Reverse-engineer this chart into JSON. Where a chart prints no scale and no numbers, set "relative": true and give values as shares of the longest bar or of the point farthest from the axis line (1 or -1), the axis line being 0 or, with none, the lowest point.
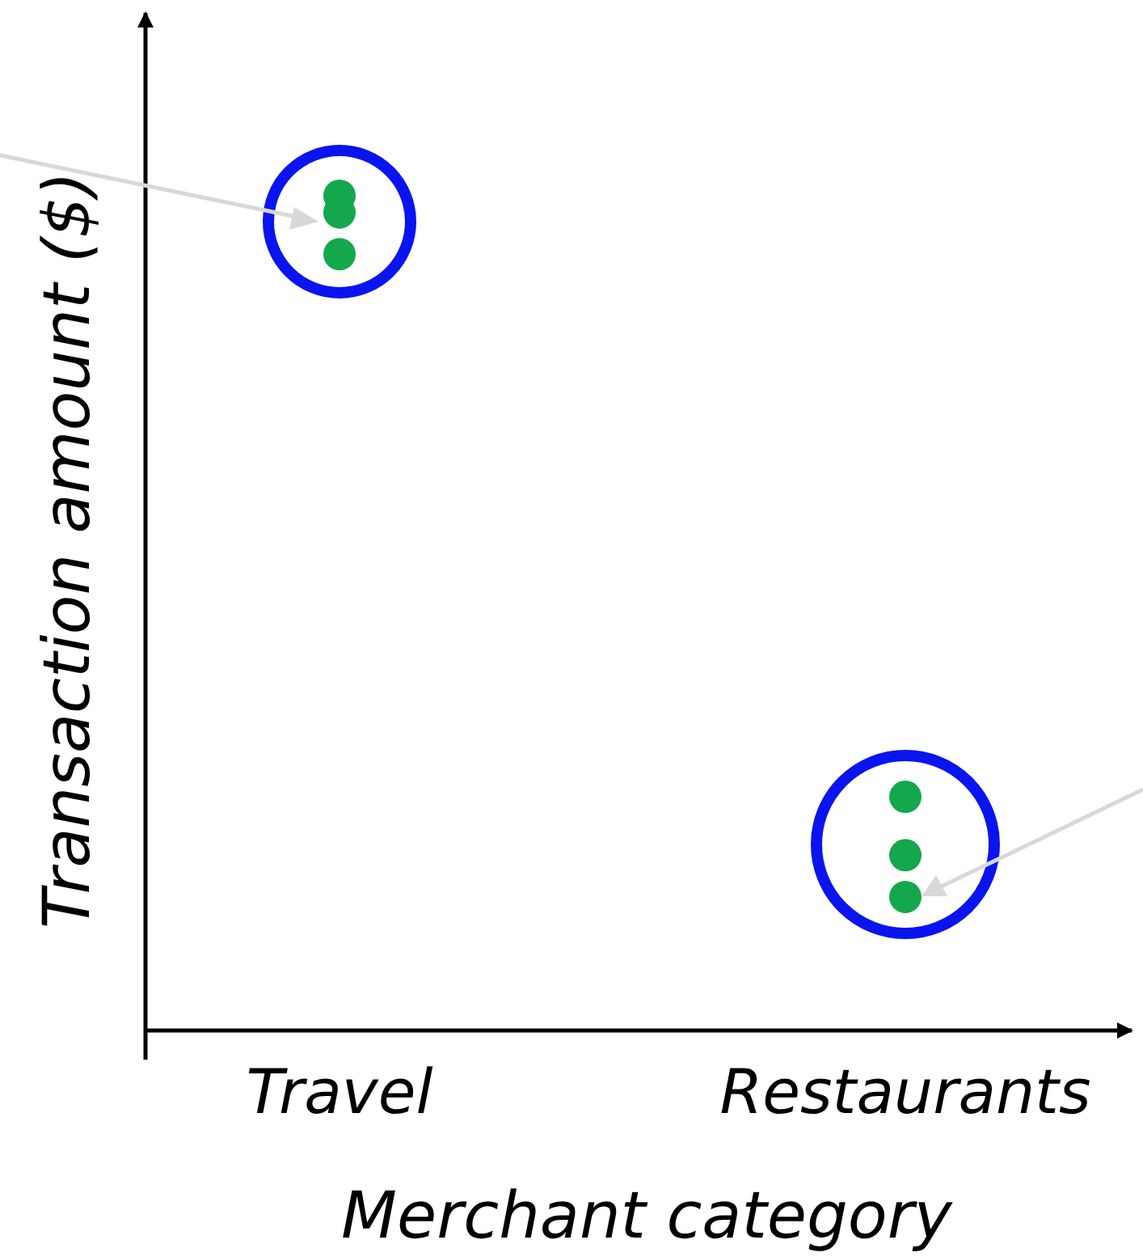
{
  "chart_data": {
    "type": "scatter",
    "xlabel": "Merchant category",
    "ylabel": "Transaction amount ($)",
    "relative": true,
    "marker": "circle",
    "categories": [
      "Travel",
      "Restaurants"
    ],
    "series": [
      {
        "color": "#12a84b",
        "x": [
          "Travel",
          "Travel",
          "Travel",
          "Restaurants",
          "Restaurants",
          "Restaurants"
        ],
        "values": [
          0.98,
          1,
          0.93,
          0.21,
          0.28,
          0.16
        ]
      }
    ]
  }
}
